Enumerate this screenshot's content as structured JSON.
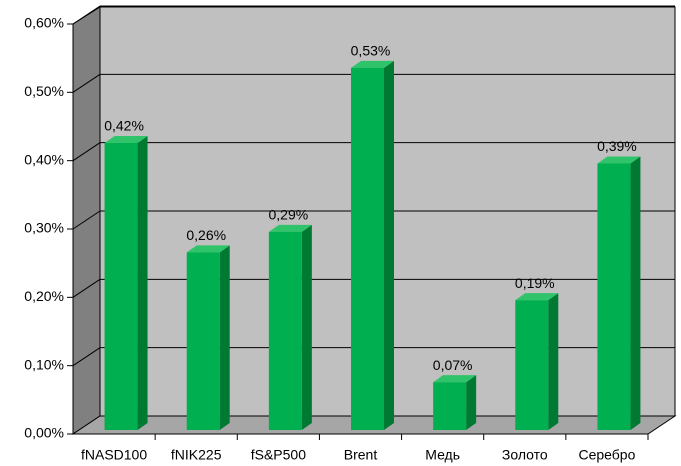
{
  "chart_data": {
    "type": "bar3d",
    "categories": [
      "fNASD100",
      "fNIK225",
      "fS&P500",
      "Brent",
      "Медь",
      "Золото",
      "Серебро"
    ],
    "values": [
      0.42,
      0.26,
      0.29,
      0.53,
      0.07,
      0.19,
      0.39
    ],
    "value_labels": [
      "0,42%",
      "0,26%",
      "0,29%",
      "0,53%",
      "0,07%",
      "0,19%",
      "0,39%"
    ],
    "color": "#00b050",
    "ylim": [
      0,
      0.6
    ],
    "yticks": [
      {
        "value": 0,
        "label": "0,00%"
      },
      {
        "value": 0.1,
        "label": "0,10%"
      },
      {
        "value": 0.2,
        "label": "0,20%"
      },
      {
        "value": 0.3,
        "label": "0,30%"
      },
      {
        "value": 0.4,
        "label": "0,40%"
      },
      {
        "value": 0.5,
        "label": "0,50%"
      },
      {
        "value": 0.6,
        "label": "0,60%"
      }
    ],
    "grid": true
  }
}
